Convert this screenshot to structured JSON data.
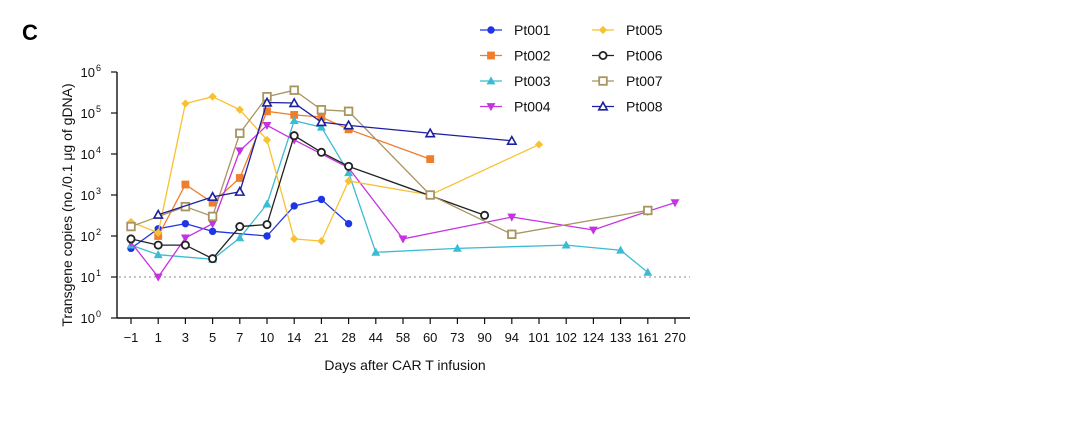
{
  "panel_label": "C",
  "chart_data": {
    "type": "line",
    "xlabel": "Days after CAR T infusion",
    "ylabel": "Transgene copies (no./0.1 μg of gDNA)",
    "y_scale": "log",
    "ylim": [
      1,
      1000000
    ],
    "y_ticks": [
      {
        "value": 1,
        "label": "10",
        "exp": "0"
      },
      {
        "value": 10,
        "label": "10",
        "exp": "1"
      },
      {
        "value": 100,
        "label": "10",
        "exp": "2"
      },
      {
        "value": 1000,
        "label": "10",
        "exp": "3"
      },
      {
        "value": 10000,
        "label": "10",
        "exp": "4"
      },
      {
        "value": 100000,
        "label": "10",
        "exp": "5"
      },
      {
        "value": 1000000,
        "label": "10",
        "exp": "6"
      }
    ],
    "categories": [
      "−1",
      "1",
      "3",
      "5",
      "7",
      "10",
      "14",
      "21",
      "28",
      "44",
      "58",
      "60",
      "73",
      "90",
      "94",
      "101",
      "102",
      "124",
      "133",
      "161",
      "270"
    ],
    "reference_line": {
      "value": 10,
      "style": "dotted"
    },
    "grid": false,
    "legend": {
      "placement": "top-right",
      "columns": 2
    },
    "series": [
      {
        "name": "Pt001",
        "color": "#1f35e6",
        "marker": "circle",
        "filled": true,
        "x": [
          "−1",
          "1",
          "3",
          "5",
          "10",
          "14",
          "21",
          "28"
        ],
        "y": [
          50,
          150,
          200,
          130,
          100,
          540,
          780,
          200
        ]
      },
      {
        "name": "Pt002",
        "color": "#f07d2c",
        "marker": "square",
        "filled": true,
        "x": [
          "1",
          "3",
          "5",
          "7",
          "10",
          "14",
          "21",
          "28",
          "60"
        ],
        "y": [
          100,
          1800,
          650,
          2600,
          110000,
          90000,
          80000,
          40000,
          7500
        ]
      },
      {
        "name": "Pt003",
        "color": "#3bbcd3",
        "marker": "triangle-up",
        "filled": true,
        "x": [
          "−1",
          "1",
          "5",
          "7",
          "10",
          "14",
          "21",
          "28",
          "44",
          "73",
          "102",
          "133",
          "161"
        ],
        "y": [
          60,
          35,
          27,
          90,
          600,
          65000,
          45000,
          3500,
          40,
          50,
          60,
          45,
          13
        ]
      },
      {
        "name": "Pt004",
        "color": "#c533e0",
        "marker": "triangle-down",
        "filled": true,
        "x": [
          "−1",
          "1",
          "3",
          "5",
          "7",
          "10",
          "14",
          "28",
          "58",
          "94",
          "124",
          "161",
          "270"
        ],
        "y": [
          70,
          10,
          90,
          200,
          12000,
          50000,
          22000,
          4600,
          85,
          290,
          140,
          400,
          650
        ]
      },
      {
        "name": "Pt005",
        "color": "#f7c132",
        "marker": "diamond",
        "filled": true,
        "x": [
          "−1",
          "1",
          "3",
          "5",
          "7",
          "10",
          "14",
          "21",
          "28",
          "60",
          "101"
        ],
        "y": [
          220,
          120,
          170000,
          250000,
          120000,
          22000,
          85,
          75,
          2200,
          1000,
          17000
        ]
      },
      {
        "name": "Pt006",
        "color": "#222222",
        "marker": "circle",
        "filled": false,
        "x": [
          "−1",
          "1",
          "3",
          "5",
          "7",
          "10",
          "14",
          "21",
          "28",
          "90"
        ],
        "y": [
          85,
          60,
          60,
          28,
          170,
          190,
          28000,
          11000,
          5000,
          320
        ]
      },
      {
        "name": "Pt007",
        "color": "#a89460",
        "marker": "square",
        "filled": false,
        "x": [
          "−1",
          "3",
          "5",
          "7",
          "10",
          "14",
          "21",
          "28",
          "60",
          "94",
          "161"
        ],
        "y": [
          170,
          520,
          300,
          32000,
          250000,
          360000,
          120000,
          110000,
          1000,
          110,
          420
        ]
      },
      {
        "name": "Pt008",
        "color": "#1c1f9e",
        "marker": "triangle-up",
        "filled": false,
        "x": [
          "1",
          "5",
          "7",
          "10",
          "14",
          "21",
          "28",
          "60",
          "94"
        ],
        "y": [
          330,
          900,
          1200,
          180000,
          175000,
          60000,
          50000,
          32000,
          21000
        ]
      }
    ]
  }
}
